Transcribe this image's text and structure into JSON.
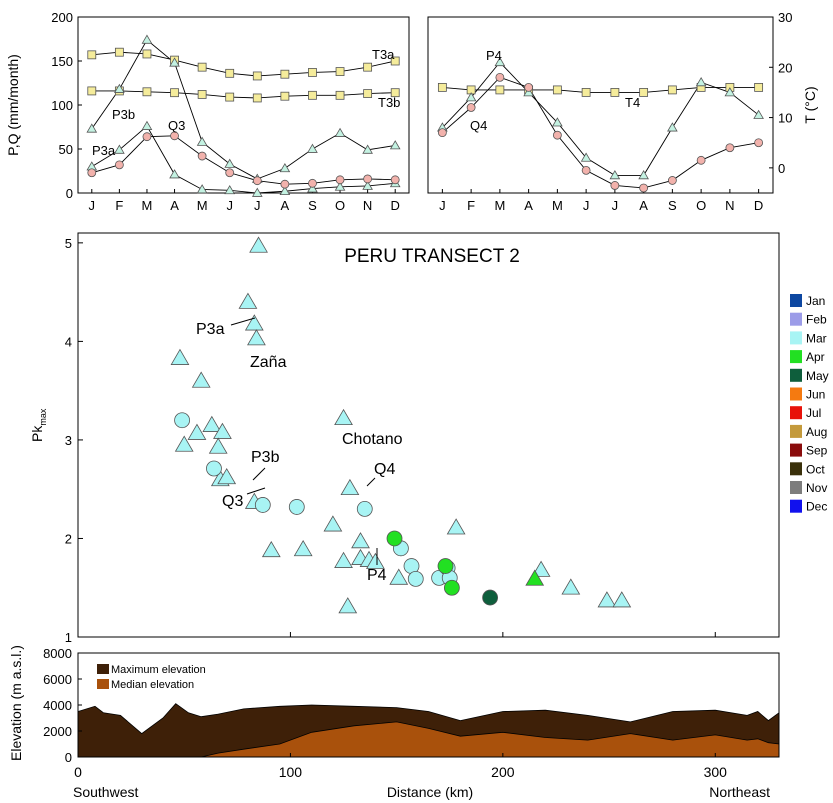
{
  "months": [
    "J",
    "F",
    "M",
    "A",
    "M",
    "J",
    "J",
    "A",
    "S",
    "O",
    "N",
    "D"
  ],
  "top_left": {
    "ylabel": "P,Q (mm/month)",
    "yticks": [
      0,
      50,
      100,
      150,
      200
    ],
    "ylim": [
      0,
      200
    ],
    "series": [
      {
        "name": "T3a",
        "marker": "square",
        "color": "#f5ec9b",
        "values": [
          157,
          160,
          158,
          151,
          143,
          136,
          133,
          135,
          137,
          138,
          143,
          150
        ]
      },
      {
        "name": "T3b",
        "marker": "square",
        "color": "#f5ec9b",
        "values": [
          116,
          116,
          115,
          114,
          112,
          109,
          108,
          110,
          111,
          111,
          113,
          114
        ]
      },
      {
        "name": "P3b",
        "marker": "triangle",
        "color": "#c4f2e2",
        "values": [
          73,
          118,
          174,
          148,
          58,
          33,
          16,
          28,
          50,
          68,
          49,
          54
        ]
      },
      {
        "name": "P3a",
        "marker": "triangle",
        "color": "#c4f2e2",
        "values": [
          30,
          49,
          76,
          21,
          4,
          3,
          0,
          2,
          5,
          7,
          8,
          11
        ]
      },
      {
        "name": "Q3",
        "marker": "circle",
        "color": "#f2b2ac",
        "values": [
          23,
          32,
          64,
          65,
          42,
          23,
          14,
          10,
          11,
          15,
          16,
          15
        ]
      }
    ],
    "labels": [
      "T3a",
      "T3b",
      "P3b",
      "P3a",
      "Q3"
    ]
  },
  "top_right": {
    "ylabel": "T (°C)",
    "yticks": [
      0,
      10,
      20,
      30
    ],
    "ylim": [
      -5,
      30
    ],
    "series": [
      {
        "name": "T4",
        "marker": "square",
        "color": "#f5ec9b",
        "values": [
          16,
          15.5,
          15.5,
          15.5,
          15.5,
          15,
          15,
          15,
          15.5,
          16,
          16,
          16
        ]
      },
      {
        "name": "P4",
        "marker": "triangle",
        "color": "#c4f2e2",
        "values": [
          8,
          14,
          21,
          15,
          9,
          2,
          -1.5,
          -1.5,
          8,
          17,
          15,
          10.5
        ]
      },
      {
        "name": "Q4",
        "marker": "circle",
        "color": "#f2b2ac",
        "values": [
          7,
          12,
          18,
          16,
          6.5,
          -0.5,
          -3.5,
          -4,
          -2.5,
          1.5,
          4,
          5
        ]
      }
    ],
    "labels": [
      "P4",
      "Q4",
      "T4"
    ]
  },
  "main": {
    "title": "PERU TRANSECT 2",
    "ylabel_main": "Pk",
    "ylabel_sub": "max",
    "yticks": [
      1,
      2,
      3,
      4,
      5
    ],
    "ylim": [
      1,
      5.1
    ],
    "xlim": [
      0,
      330
    ],
    "annotations": [
      "P3a",
      "Zaña",
      "Chotano",
      "P3b",
      "Q4",
      "Q3",
      "P4"
    ],
    "legend": [
      {
        "label": "Jan",
        "color": "#0d47a1"
      },
      {
        "label": "Feb",
        "color": "#9c9ce8"
      },
      {
        "label": "Mar",
        "color": "#a8f4f4"
      },
      {
        "label": "Apr",
        "color": "#22e022"
      },
      {
        "label": "May",
        "color": "#0e5e3c"
      },
      {
        "label": "Jun",
        "color": "#f57a10"
      },
      {
        "label": "Jul",
        "color": "#e8120a"
      },
      {
        "label": "Aug",
        "color": "#c49a3c"
      },
      {
        "label": "Sep",
        "color": "#8a0c0c"
      },
      {
        "label": "Oct",
        "color": "#3a300a"
      },
      {
        "label": "Nov",
        "color": "#7d7d7d"
      },
      {
        "label": "Dec",
        "color": "#1111ee"
      }
    ]
  },
  "chart_data": [
    {
      "type": "line",
      "title": "",
      "xlabel": "",
      "ylabel": "P,Q (mm/month)",
      "categories": [
        "J",
        "F",
        "M",
        "A",
        "M",
        "J",
        "J",
        "A",
        "S",
        "O",
        "N",
        "D"
      ],
      "ylim": [
        0,
        200
      ],
      "series": [
        {
          "name": "T3a",
          "values": [
            157,
            160,
            158,
            151,
            143,
            136,
            133,
            135,
            137,
            138,
            143,
            150
          ]
        },
        {
          "name": "T3b",
          "values": [
            116,
            116,
            115,
            114,
            112,
            109,
            108,
            110,
            111,
            111,
            113,
            114
          ]
        },
        {
          "name": "P3b",
          "values": [
            73,
            118,
            174,
            148,
            58,
            33,
            16,
            28,
            50,
            68,
            49,
            54
          ]
        },
        {
          "name": "P3a",
          "values": [
            30,
            49,
            76,
            21,
            4,
            3,
            0,
            2,
            5,
            7,
            8,
            11
          ]
        },
        {
          "name": "Q3",
          "values": [
            23,
            32,
            64,
            65,
            42,
            23,
            14,
            10,
            11,
            15,
            16,
            15
          ]
        }
      ]
    },
    {
      "type": "line",
      "title": "",
      "xlabel": "",
      "ylabel": "T (°C)",
      "categories": [
        "J",
        "F",
        "M",
        "A",
        "M",
        "J",
        "J",
        "A",
        "S",
        "O",
        "N",
        "D"
      ],
      "ylim": [
        -5,
        30
      ],
      "series": [
        {
          "name": "T4",
          "values": [
            16,
            15.5,
            15.5,
            15.5,
            15.5,
            15,
            15,
            15,
            15.5,
            16,
            16,
            16
          ]
        },
        {
          "name": "P4",
          "values": [
            8,
            14,
            21,
            15,
            9,
            2,
            -1.5,
            -1.5,
            8,
            17,
            15,
            10.5
          ]
        },
        {
          "name": "Q4",
          "values": [
            7,
            12,
            18,
            16,
            6.5,
            -0.5,
            -3.5,
            -4,
            -2.5,
            1.5,
            4,
            5
          ]
        }
      ]
    },
    {
      "type": "scatter",
      "title": "PERU TRANSECT 2",
      "xlabel": "Distance (km)",
      "ylabel": "Pkmax",
      "xlim": [
        0,
        330
      ],
      "ylim": [
        1,
        5.1
      ],
      "legend": "right",
      "points": [
        {
          "x": 85,
          "y": 4.97,
          "marker": "triangle",
          "month": "Mar"
        },
        {
          "x": 80,
          "y": 4.4,
          "marker": "triangle",
          "month": "Mar"
        },
        {
          "x": 83,
          "y": 4.18,
          "marker": "triangle",
          "month": "Mar"
        },
        {
          "x": 84,
          "y": 4.03,
          "marker": "triangle",
          "month": "Mar"
        },
        {
          "x": 48,
          "y": 3.83,
          "marker": "triangle",
          "month": "Mar"
        },
        {
          "x": 58,
          "y": 3.6,
          "marker": "triangle",
          "month": "Mar"
        },
        {
          "x": 125,
          "y": 3.22,
          "marker": "triangle",
          "month": "Mar"
        },
        {
          "x": 56,
          "y": 3.07,
          "marker": "triangle",
          "month": "Mar"
        },
        {
          "x": 50,
          "y": 2.95,
          "marker": "triangle",
          "month": "Mar"
        },
        {
          "x": 63,
          "y": 3.15,
          "marker": "triangle",
          "month": "Mar"
        },
        {
          "x": 68,
          "y": 3.08,
          "marker": "triangle",
          "month": "Mar"
        },
        {
          "x": 66,
          "y": 2.93,
          "marker": "triangle",
          "month": "Mar"
        },
        {
          "x": 67,
          "y": 2.6,
          "marker": "triangle",
          "month": "Mar"
        },
        {
          "x": 70,
          "y": 2.62,
          "marker": "triangle",
          "month": "Mar"
        },
        {
          "x": 128,
          "y": 2.51,
          "marker": "triangle",
          "month": "Mar"
        },
        {
          "x": 83,
          "y": 2.37,
          "marker": "triangle",
          "month": "Mar"
        },
        {
          "x": 120,
          "y": 2.14,
          "marker": "triangle",
          "month": "Mar"
        },
        {
          "x": 178,
          "y": 2.11,
          "marker": "triangle",
          "month": "Mar"
        },
        {
          "x": 133,
          "y": 1.97,
          "marker": "triangle",
          "month": "Mar"
        },
        {
          "x": 91,
          "y": 1.88,
          "marker": "triangle",
          "month": "Mar"
        },
        {
          "x": 106,
          "y": 1.89,
          "marker": "triangle",
          "month": "Mar"
        },
        {
          "x": 125,
          "y": 1.77,
          "marker": "triangle",
          "month": "Mar"
        },
        {
          "x": 133,
          "y": 1.8,
          "marker": "triangle",
          "month": "Mar"
        },
        {
          "x": 137,
          "y": 1.78,
          "marker": "triangle",
          "month": "Mar"
        },
        {
          "x": 140,
          "y": 1.76,
          "marker": "triangle",
          "month": "Mar"
        },
        {
          "x": 151,
          "y": 1.6,
          "marker": "triangle",
          "month": "Mar"
        },
        {
          "x": 127,
          "y": 1.31,
          "marker": "triangle",
          "month": "Mar"
        },
        {
          "x": 218,
          "y": 1.68,
          "marker": "triangle",
          "month": "Mar"
        },
        {
          "x": 232,
          "y": 1.5,
          "marker": "triangle",
          "month": "Mar"
        },
        {
          "x": 249,
          "y": 1.37,
          "marker": "triangle",
          "month": "Mar"
        },
        {
          "x": 256,
          "y": 1.37,
          "marker": "triangle",
          "month": "Mar"
        },
        {
          "x": 215,
          "y": 1.59,
          "marker": "triangle",
          "month": "Apr"
        },
        {
          "x": 49,
          "y": 3.2,
          "marker": "circle",
          "month": "Mar"
        },
        {
          "x": 64,
          "y": 2.71,
          "marker": "circle",
          "month": "Mar"
        },
        {
          "x": 87,
          "y": 2.34,
          "marker": "circle",
          "month": "Mar"
        },
        {
          "x": 103,
          "y": 2.32,
          "marker": "circle",
          "month": "Mar"
        },
        {
          "x": 135,
          "y": 2.3,
          "marker": "circle",
          "month": "Mar"
        },
        {
          "x": 152,
          "y": 1.9,
          "marker": "circle",
          "month": "Mar"
        },
        {
          "x": 157,
          "y": 1.72,
          "marker": "circle",
          "month": "Mar"
        },
        {
          "x": 159,
          "y": 1.59,
          "marker": "circle",
          "month": "Mar"
        },
        {
          "x": 170,
          "y": 1.6,
          "marker": "circle",
          "month": "Mar"
        },
        {
          "x": 174,
          "y": 1.7,
          "marker": "circle",
          "month": "Mar"
        },
        {
          "x": 175,
          "y": 1.6,
          "marker": "circle",
          "month": "Mar"
        },
        {
          "x": 149,
          "y": 2.0,
          "marker": "circle",
          "month": "Apr"
        },
        {
          "x": 173,
          "y": 1.72,
          "marker": "circle",
          "month": "Apr"
        },
        {
          "x": 176,
          "y": 1.5,
          "marker": "circle",
          "month": "Apr"
        },
        {
          "x": 194,
          "y": 1.4,
          "marker": "circle",
          "month": "May"
        }
      ]
    },
    {
      "type": "area",
      "title": "",
      "xlabel": "Distance (km)",
      "ylabel": "Elevation (m a.s.l.)",
      "xlim": [
        0,
        330
      ],
      "ylim": [
        0,
        8000
      ],
      "x": [
        0,
        8,
        12,
        20,
        30,
        40,
        46,
        52,
        58,
        66,
        78,
        95,
        110,
        130,
        150,
        165,
        180,
        200,
        220,
        240,
        260,
        280,
        300,
        315,
        320,
        325,
        330
      ],
      "series": [
        {
          "name": "Maximum elevation",
          "values": [
            3500,
            3900,
            3400,
            3200,
            1800,
            3000,
            4100,
            3400,
            3100,
            3300,
            3700,
            3900,
            4000,
            3900,
            3800,
            3500,
            2800,
            3500,
            3600,
            3200,
            2700,
            3500,
            3600,
            3200,
            3500,
            2800,
            3400
          ]
        },
        {
          "name": "Median elevation",
          "values": [
            0,
            0,
            0,
            0,
            0,
            0,
            0,
            0,
            0,
            300,
            600,
            1000,
            1900,
            2400,
            2700,
            2200,
            1600,
            1900,
            1500,
            1300,
            1800,
            1300,
            1700,
            1300,
            1400,
            1100,
            1000
          ]
        }
      ],
      "legend": "top-left"
    }
  ],
  "elev": {
    "ylabel": "Elevation (m a.s.l.)",
    "yticks": [
      0,
      2000,
      4000,
      6000,
      8000
    ],
    "xticks": [
      0,
      100,
      200,
      300
    ],
    "legend_max": "Maximum elevation",
    "legend_med": "Median elevation",
    "max_color": "#3e2008",
    "med_color": "#a9510c"
  },
  "xaxis": {
    "left": "Southwest",
    "center": "Distance (km)",
    "right": "Northeast"
  }
}
